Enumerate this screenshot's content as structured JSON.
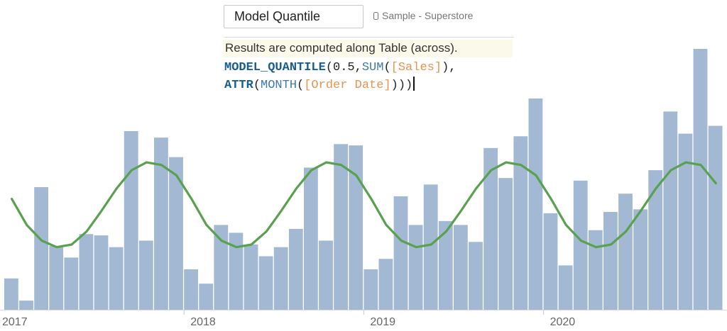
{
  "calc_editor": {
    "name": "Model Quantile",
    "datasource": "Sample - Superstore",
    "notice": "Results are computed along Table (across).",
    "formula": {
      "line1": {
        "fn": "MODEL_QUANTILE",
        "p1": "(",
        "num": "0.5",
        "comma1": ",",
        "fn2": "SUM",
        "p2": "(",
        "field": "[Sales]",
        "p3": "),"
      },
      "line2": {
        "fn": "ATTR",
        "p1": "(",
        "fn2": "MONTH",
        "p2": "(",
        "field": "[Order Date]",
        "p3": ")))"
      }
    }
  },
  "chart_data": {
    "type": "bar",
    "x_tick_labels": [
      "2017",
      "2018",
      "2019",
      "2020"
    ],
    "y_range": [
      0,
      100
    ],
    "grid": false,
    "series": [
      {
        "type": "bar",
        "color": "#a3b8d3",
        "values": [
          12,
          3.5,
          47,
          24.5,
          20,
          29,
          28.5,
          24,
          68.5,
          26.5,
          66,
          58.5,
          15.5,
          10,
          32.5,
          29.5,
          25,
          20.5,
          24,
          31,
          54.5,
          26.5,
          63.5,
          63,
          15.5,
          19.5,
          43.5,
          32.5,
          48,
          34,
          32.5,
          26,
          62,
          50.5,
          66.5,
          81,
          37,
          17,
          49.5,
          30.5,
          37.5,
          44.5,
          38.5,
          53.5,
          76,
          67.5,
          100,
          70.5
        ]
      },
      {
        "type": "line",
        "color": "#59a14f",
        "values": [
          42.5,
          32.5,
          26.5,
          24,
          25,
          30,
          38,
          46.5,
          53.5,
          56.5,
          55.5,
          51.5,
          42.5,
          32.5,
          26.5,
          24,
          25,
          30,
          38,
          46.5,
          53.5,
          56.5,
          55.5,
          51.5,
          42.5,
          32.5,
          26.5,
          24,
          25,
          30,
          38,
          46.5,
          53.5,
          56.5,
          55.5,
          51.5,
          42.5,
          32.5,
          26.5,
          24,
          25,
          30,
          38,
          46.5,
          53.5,
          56.5,
          55.5,
          48.5
        ]
      }
    ]
  }
}
